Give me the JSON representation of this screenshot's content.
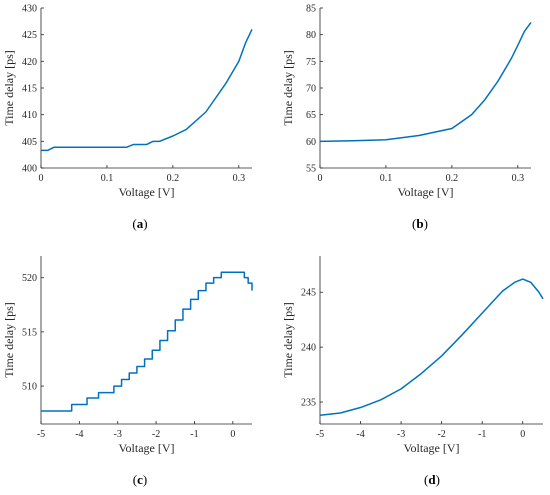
{
  "style": {
    "line_color": "#0072BD",
    "axis_color": "#262626"
  },
  "chart_data": [
    {
      "type": "line",
      "caption": "(a)",
      "caption_letter": "a",
      "xlabel": "Voltage [V]",
      "ylabel": "Time delay [ps]",
      "xlim": [
        0,
        0.32
      ],
      "ylim": [
        400,
        430
      ],
      "xticks": [
        0,
        0.1,
        0.2,
        0.3
      ],
      "xtick_labels": [
        "0",
        "0.1",
        "0.2",
        "0.3"
      ],
      "yticks": [
        400,
        405,
        410,
        415,
        420,
        425,
        430
      ],
      "ytick_labels": [
        "400",
        "405",
        "410",
        "415",
        "420",
        "425",
        "430"
      ],
      "grid": false,
      "series": [
        {
          "x": [
            0,
            0.01,
            0.015,
            0.02,
            0.05,
            0.1,
            0.13,
            0.14,
            0.16,
            0.17,
            0.18,
            0.2,
            0.22,
            0.25,
            0.28,
            0.3,
            0.31,
            0.32
          ],
          "y": [
            403.3,
            403.3,
            403.6,
            403.9,
            403.9,
            403.9,
            403.9,
            404.4,
            404.4,
            405.0,
            405.0,
            406.0,
            407.2,
            410.5,
            415.8,
            420.0,
            423.4,
            426.0
          ]
        }
      ]
    },
    {
      "type": "line",
      "caption": "(b)",
      "caption_letter": "b",
      "xlabel": "Voltage [V]",
      "ylabel": "Time delay [ps]",
      "xlim": [
        0,
        0.32
      ],
      "ylim": [
        55,
        85
      ],
      "xticks": [
        0,
        0.1,
        0.2,
        0.3
      ],
      "xtick_labels": [
        "0",
        "0.1",
        "0.2",
        "0.3"
      ],
      "yticks": [
        55,
        60,
        65,
        70,
        75,
        80,
        85
      ],
      "ytick_labels": [
        "55",
        "60",
        "65",
        "70",
        "75",
        "80",
        "85"
      ],
      "grid": false,
      "series": [
        {
          "x": [
            0,
            0.05,
            0.1,
            0.15,
            0.2,
            0.23,
            0.25,
            0.27,
            0.29,
            0.3,
            0.31,
            0.32
          ],
          "y": [
            60.0,
            60.1,
            60.3,
            61.1,
            62.4,
            65.0,
            67.8,
            71.3,
            75.5,
            78.0,
            80.6,
            82.3
          ]
        }
      ]
    },
    {
      "type": "line",
      "caption": "(c)",
      "caption_letter": "c",
      "xlabel": "Voltage [V]",
      "ylabel": "Time delay [ps]",
      "xlim": [
        -5,
        0.5
      ],
      "ylim": [
        506.5,
        522
      ],
      "xticks": [
        -5,
        -4,
        -3,
        -2,
        -1,
        0
      ],
      "xtick_labels": [
        "-5",
        "-4",
        "-3",
        "-2",
        "-1",
        "0"
      ],
      "yticks": [
        510,
        515,
        520
      ],
      "ytick_labels": [
        "510",
        "515",
        "520"
      ],
      "grid": false,
      "series": [
        {
          "x": [
            -5,
            -4.2,
            -3.8,
            -3.5,
            -3.1,
            -2.9,
            -2.7,
            -2.5,
            -2.3,
            -2.1,
            -1.9,
            -1.7,
            -1.5,
            -1.3,
            -1.1,
            -0.9,
            -0.7,
            -0.5,
            -0.3,
            0.2,
            0.3,
            0.4,
            0.5
          ],
          "y": [
            507.7,
            508.3,
            508.9,
            509.4,
            510.0,
            510.6,
            511.2,
            511.8,
            512.5,
            513.3,
            514.2,
            515.1,
            516.1,
            517.1,
            518.0,
            518.8,
            519.5,
            520.0,
            520.5,
            520.5,
            520.0,
            519.5,
            518.8
          ]
        }
      ]
    },
    {
      "type": "line",
      "caption": "(d)",
      "caption_letter": "d",
      "xlabel": "Voltage [V]",
      "ylabel": "Time delay [ps]",
      "xlim": [
        -5,
        0.5
      ],
      "ylim": [
        233,
        248.3
      ],
      "xticks": [
        -5,
        -4,
        -3,
        -2,
        -1,
        0
      ],
      "xtick_labels": [
        "-5",
        "-4",
        "-3",
        "-2",
        "-1",
        "0"
      ],
      "yticks": [
        235,
        240,
        245
      ],
      "ytick_labels": [
        "235",
        "240",
        "245"
      ],
      "grid": false,
      "series": [
        {
          "x": [
            -5,
            -4.5,
            -4,
            -3.5,
            -3,
            -2.5,
            -2,
            -1.5,
            -1,
            -0.5,
            -0.2,
            0,
            0.2,
            0.4,
            0.5
          ],
          "y": [
            233.8,
            234.0,
            234.5,
            235.2,
            236.2,
            237.6,
            239.2,
            241.1,
            243.1,
            245.1,
            245.9,
            246.2,
            245.9,
            245.0,
            244.4
          ]
        }
      ]
    }
  ]
}
